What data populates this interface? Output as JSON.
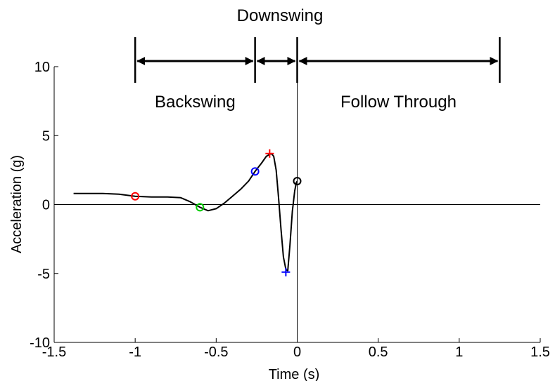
{
  "chart_data": {
    "type": "line",
    "xlabel": "Time (s)",
    "ylabel": "Acceleration (g)",
    "xlim": [
      -1.5,
      1.5
    ],
    "ylim": [
      -10,
      10
    ],
    "xticks": [
      -1.5,
      -1,
      -0.5,
      0,
      0.5,
      1,
      1.5
    ],
    "yticks": [
      -10,
      -5,
      0,
      5,
      10
    ],
    "xtick_labels": [
      "-1.5",
      "-1",
      "-0.5",
      "0",
      "0.5",
      "1",
      "1.5"
    ],
    "ytick_labels": [
      "-10",
      "-5",
      "0",
      "5",
      "10"
    ],
    "grid": false,
    "reference_lines": {
      "y": 0,
      "x": 0
    },
    "series": [
      {
        "color": "#000000",
        "x": [
          -1.38,
          -1.3,
          -1.2,
          -1.1,
          -1.0,
          -0.9,
          -0.8,
          -0.72,
          -0.66,
          -0.6,
          -0.55,
          -0.5,
          -0.45,
          -0.4,
          -0.35,
          -0.3,
          -0.26,
          -0.22,
          -0.19,
          -0.16,
          -0.145,
          -0.13,
          -0.115,
          -0.1,
          -0.085,
          -0.07,
          -0.058,
          -0.045,
          -0.03,
          -0.015,
          -0.005,
          0.0
        ],
        "y": [
          0.8,
          0.8,
          0.8,
          0.75,
          0.6,
          0.55,
          0.55,
          0.5,
          0.2,
          -0.2,
          -0.45,
          -0.3,
          0.1,
          0.6,
          1.1,
          1.7,
          2.4,
          3.0,
          3.5,
          3.7,
          3.5,
          2.5,
          0.5,
          -1.8,
          -3.8,
          -4.7,
          -4.8,
          -3.0,
          -0.5,
          1.0,
          1.6,
          1.7
        ]
      }
    ],
    "markers": [
      {
        "x": -1.0,
        "y": 0.6,
        "shape": "circle",
        "color": "#ff0000"
      },
      {
        "x": -0.6,
        "y": -0.2,
        "shape": "circle",
        "color": "#00cc00"
      },
      {
        "x": -0.26,
        "y": 2.4,
        "shape": "circle",
        "color": "#0000ff"
      },
      {
        "x": -0.17,
        "y": 3.7,
        "shape": "plus",
        "color": "#ff0000"
      },
      {
        "x": -0.07,
        "y": -4.9,
        "shape": "plus",
        "color": "#0000ff"
      },
      {
        "x": 0.0,
        "y": 1.7,
        "shape": "circle",
        "color": "#000000"
      }
    ],
    "phases": [
      {
        "label": "Backswing",
        "start": -1.0,
        "end": -0.26,
        "label_position": "below-arrow"
      },
      {
        "label": "Downswing",
        "start": -0.26,
        "end": 0.0,
        "label_position": "above-arrow"
      },
      {
        "label": "Follow Through",
        "start": 0.0,
        "end": 1.25,
        "label_position": "below-arrow"
      }
    ],
    "phase_boundaries": [
      -1.0,
      -0.26,
      0.0,
      1.25
    ]
  }
}
